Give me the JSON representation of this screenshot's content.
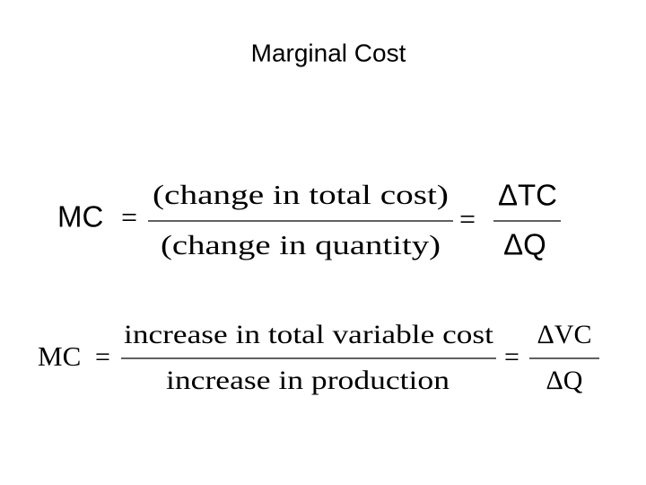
{
  "title": "Marginal Cost",
  "equations": [
    {
      "lhs": "MC",
      "equals": "=",
      "fraction1": {
        "numerator": "(change in total cost)",
        "denominator": "(change in quantity)"
      },
      "fraction2": {
        "numerator": "ΔTC",
        "denominator": "ΔQ"
      }
    },
    {
      "lhs": "MC",
      "equals": "=",
      "fraction1": {
        "numerator": "increase in total variable cost",
        "denominator": "increase in production"
      },
      "fraction2": {
        "numerator": "ΔVC",
        "denominator": "ΔQ"
      }
    }
  ]
}
